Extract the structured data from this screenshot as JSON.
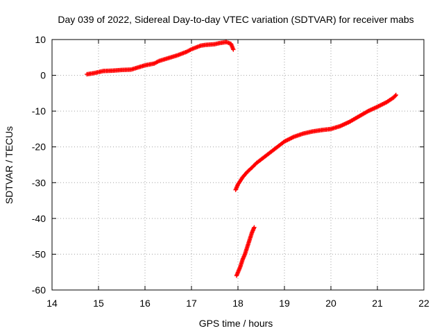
{
  "chart_data": {
    "type": "scatter",
    "title": "Day 039 of 2022, Sidereal Day-to-day VTEC variation (SDTVAR) for receiver mabs",
    "xlabel": "GPS time / hours",
    "ylabel": "SDTVAR / TECUs",
    "xlim": [
      14,
      22
    ],
    "ylim": [
      -60,
      10
    ],
    "xticks": [
      14,
      15,
      16,
      17,
      18,
      19,
      20,
      21,
      22
    ],
    "yticks": [
      10,
      0,
      -10,
      -20,
      -30,
      -40,
      -50,
      -60
    ],
    "xtick_labels": [
      "14",
      "15",
      "16",
      "17",
      "18",
      "19",
      "20",
      "21",
      "22"
    ],
    "ytick_labels": [
      "10",
      "0",
      "-10",
      "-20",
      "-30",
      "-40",
      "-50",
      "-60"
    ],
    "grid": true,
    "marker_color": "#ff0000",
    "series": [
      {
        "name": "segment-1",
        "x": [
          14.75,
          14.9,
          15.0,
          15.1,
          15.3,
          15.5,
          15.7,
          15.8,
          16.0,
          16.2,
          16.3,
          16.5,
          16.7,
          16.9,
          17.0,
          17.2,
          17.3,
          17.5,
          17.6,
          17.75,
          17.85,
          17.9
        ],
        "y": [
          0.3,
          0.6,
          0.9,
          1.2,
          1.3,
          1.5,
          1.6,
          2.0,
          2.8,
          3.3,
          4.0,
          4.8,
          5.6,
          6.6,
          7.3,
          8.3,
          8.5,
          8.7,
          9.0,
          9.3,
          8.8,
          7.2
        ]
      },
      {
        "name": "segment-2",
        "x": [
          17.95,
          18.0,
          18.1,
          18.2,
          18.3,
          18.4,
          18.5,
          18.7,
          18.9,
          19.0,
          19.2,
          19.4,
          19.6,
          19.8,
          20.0,
          20.2,
          20.4,
          20.6,
          20.8,
          21.0,
          21.2,
          21.35,
          21.4
        ],
        "y": [
          -32.0,
          -30.5,
          -28.5,
          -27.0,
          -25.8,
          -24.5,
          -23.5,
          -21.5,
          -19.5,
          -18.5,
          -17.2,
          -16.3,
          -15.7,
          -15.3,
          -15.0,
          -14.2,
          -13.0,
          -11.5,
          -10.0,
          -8.8,
          -7.5,
          -6.2,
          -5.5
        ]
      },
      {
        "name": "segment-3",
        "x": [
          17.97,
          18.05,
          18.1,
          18.15,
          18.2,
          18.25,
          18.3,
          18.35
        ],
        "y": [
          -56.0,
          -53.5,
          -51.5,
          -50.0,
          -48.0,
          -46.0,
          -44.0,
          -42.5
        ]
      }
    ]
  }
}
